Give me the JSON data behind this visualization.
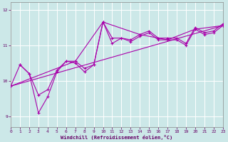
{
  "background_color": "#cce8e8",
  "grid_color": "#ffffff",
  "line_color": "#aa00aa",
  "xlabel": "Windchill (Refroidissement éolien,°C)",
  "xlim": [
    0,
    23
  ],
  "ylim": [
    8.7,
    12.2
  ],
  "yticks": [
    9,
    10,
    11,
    12
  ],
  "xticks": [
    0,
    1,
    2,
    3,
    4,
    5,
    6,
    7,
    8,
    9,
    10,
    11,
    12,
    13,
    14,
    15,
    16,
    17,
    18,
    19,
    20,
    21,
    22,
    23
  ],
  "line1_x": [
    0,
    1,
    2,
    3,
    4,
    5,
    6,
    7,
    8,
    9,
    10,
    11,
    12,
    13,
    14,
    15,
    16,
    17,
    18,
    19,
    20,
    21,
    22,
    23
  ],
  "line1_y": [
    9.85,
    10.45,
    10.2,
    9.6,
    9.75,
    10.3,
    10.55,
    10.55,
    10.35,
    10.45,
    11.65,
    11.2,
    11.2,
    11.15,
    11.3,
    11.4,
    11.2,
    11.2,
    11.2,
    11.05,
    11.5,
    11.35,
    11.4,
    11.6
  ],
  "line2_x": [
    1,
    2,
    3,
    4,
    5,
    6,
    7,
    8,
    9,
    10,
    11,
    12,
    13,
    14,
    15,
    16,
    17,
    18,
    19,
    20,
    21,
    22,
    23
  ],
  "line2_y": [
    10.45,
    10.2,
    9.1,
    9.55,
    10.25,
    10.55,
    10.5,
    10.25,
    10.45,
    11.65,
    11.05,
    11.2,
    11.1,
    11.25,
    11.35,
    11.15,
    11.15,
    11.15,
    11.0,
    11.45,
    11.3,
    11.35,
    11.55
  ],
  "line3_x": [
    0,
    23
  ],
  "line3_y": [
    9.85,
    11.55
  ],
  "line4_x": [
    0,
    7,
    10,
    14,
    17,
    20,
    23
  ],
  "line4_y": [
    9.85,
    10.55,
    11.65,
    11.3,
    11.15,
    11.45,
    11.55
  ]
}
